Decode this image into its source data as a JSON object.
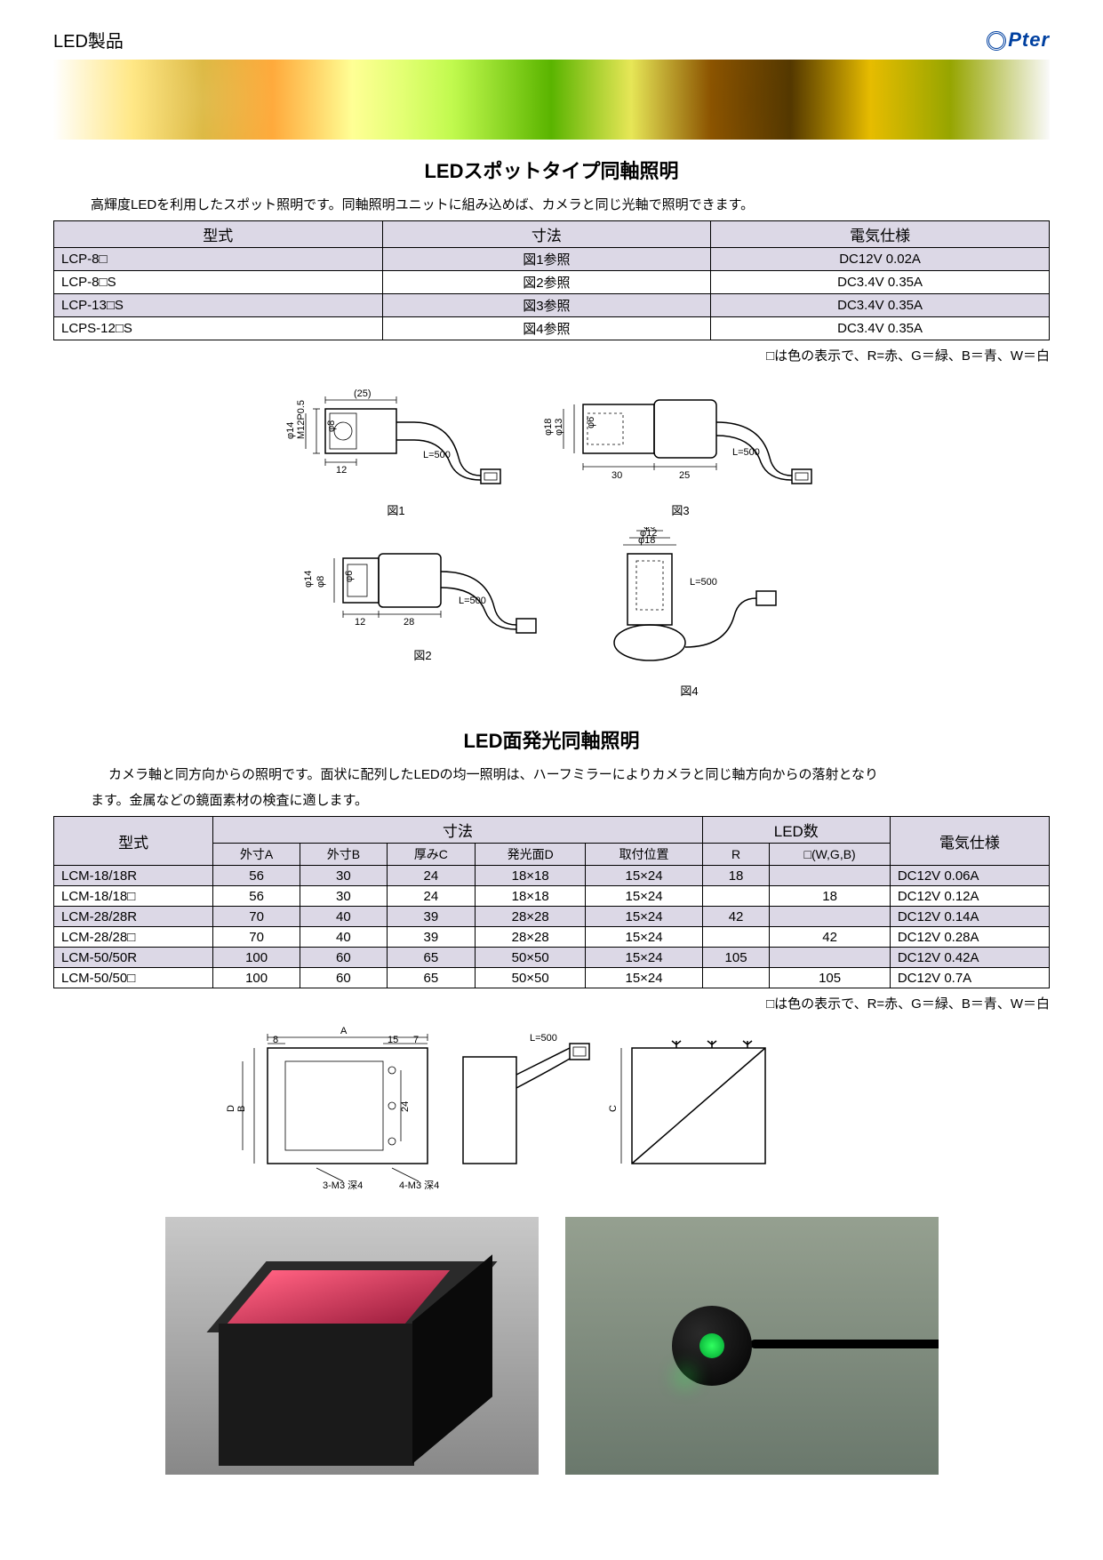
{
  "page_header": "LED製品",
  "logo_text": "Pter",
  "section1": {
    "title": "LEDスポットタイプ同軸照明",
    "desc": "高輝度LEDを利用したスポット照明です。同軸照明ユニットに組み込めば、カメラと同じ光軸で照明できます。",
    "headers": [
      "型式",
      "寸法",
      "電気仕様"
    ],
    "rows": [
      {
        "model": "LCP-8□",
        "dim": "図1参照",
        "elec": "DC12V  0.02A",
        "alt": true
      },
      {
        "model": "LCP-8□S",
        "dim": "図2参照",
        "elec": "DC3.4V  0.35A",
        "alt": false
      },
      {
        "model": "LCP-13□S",
        "dim": "図3参照",
        "elec": "DC3.4V  0.35A",
        "alt": true
      },
      {
        "model": "LCPS-12□S",
        "dim": "図4参照",
        "elec": "DC3.4V  0.35A",
        "alt": false
      }
    ],
    "note": "□は色の表示で、R=赤、G＝緑、B＝青、W＝白",
    "fig1_dim_top": "(25)",
    "fig1_dim_left1": "φ14",
    "fig1_dim_left2": "M12P0.5",
    "fig1_dim_inner": "φ8",
    "fig1_dim_bottom": "12",
    "fig1_cable": "L=500",
    "fig1_caption": "図1",
    "fig2_dim_left": "φ14",
    "fig2_dim_inner1": "φ8",
    "fig2_dim_inner2": "φ6",
    "fig2_dim_b1": "12",
    "fig2_dim_b2": "28",
    "fig2_cable": "L=500",
    "fig2_caption": "図2",
    "fig3_dim_left": "φ18",
    "fig3_dim_inner1": "φ13",
    "fig3_dim_inner2": "φ6",
    "fig3_dim_b1": "30",
    "fig3_dim_b2": "25",
    "fig3_cable": "L=500",
    "fig3_caption": "図3",
    "fig4_dim_t1": "φ18",
    "fig4_dim_t2": "φ12",
    "fig4_dim_t3": "φ6",
    "fig4_cable": "L=500",
    "fig4_caption": "図4"
  },
  "section2": {
    "title": "LED面発光同軸照明",
    "desc1": "カメラ軸と同方向からの照明です。面状に配列したLEDの均一照明は、ハーフミラーによりカメラと同じ軸方向からの落射となり",
    "desc2": "ます。金属などの鏡面素材の検査に適します。",
    "header_top": {
      "model": "型式",
      "dim": "寸法",
      "led": "LED数",
      "elec": "電気仕様"
    },
    "header_sub": [
      "外寸A",
      "外寸B",
      "厚みC",
      "発光面D",
      "取付位置",
      "R",
      "□(W,G,B)"
    ],
    "rows": [
      {
        "model": "LCM-18/18R",
        "a": "56",
        "b": "30",
        "c": "24",
        "d": "18×18",
        "pos": "15×24",
        "r": "18",
        "wgb": "",
        "elec": "DC12V  0.06A",
        "alt": true
      },
      {
        "model": "LCM-18/18□",
        "a": "56",
        "b": "30",
        "c": "24",
        "d": "18×18",
        "pos": "15×24",
        "r": "",
        "wgb": "18",
        "elec": "DC12V  0.12A",
        "alt": false
      },
      {
        "model": "LCM-28/28R",
        "a": "70",
        "b": "40",
        "c": "39",
        "d": "28×28",
        "pos": "15×24",
        "r": "42",
        "wgb": "",
        "elec": "DC12V  0.14A",
        "alt": true
      },
      {
        "model": "LCM-28/28□",
        "a": "70",
        "b": "40",
        "c": "39",
        "d": "28×28",
        "pos": "15×24",
        "r": "",
        "wgb": "42",
        "elec": "DC12V  0.28A",
        "alt": false
      },
      {
        "model": "LCM-50/50R",
        "a": "100",
        "b": "60",
        "c": "65",
        "d": "50×50",
        "pos": "15×24",
        "r": "105",
        "wgb": "",
        "elec": "DC12V  0.42A",
        "alt": true
      },
      {
        "model": "LCM-50/50□",
        "a": "100",
        "b": "60",
        "c": "65",
        "d": "50×50",
        "pos": "15×24",
        "r": "",
        "wgb": "105",
        "elec": "DC12V  0.7A",
        "alt": false
      }
    ],
    "note": "□は色の表示で、R=赤、G＝緑、B＝青、W＝白",
    "diag_A": "A",
    "diag_B": "B",
    "diag_C": "C",
    "diag_D": "D",
    "diag_8": "8",
    "diag_15": "15",
    "diag_7": "7",
    "diag_24": "24",
    "diag_cable": "L=500",
    "diag_note1": "3-M3  深4",
    "diag_note2": "4-M3  深4"
  },
  "colors": {
    "header_bg": "#dcd8e6",
    "border": "#000000",
    "text": "#000000",
    "logo": "#0040a0",
    "photo_red": "#ff6080",
    "photo_green": "#30ff60"
  }
}
